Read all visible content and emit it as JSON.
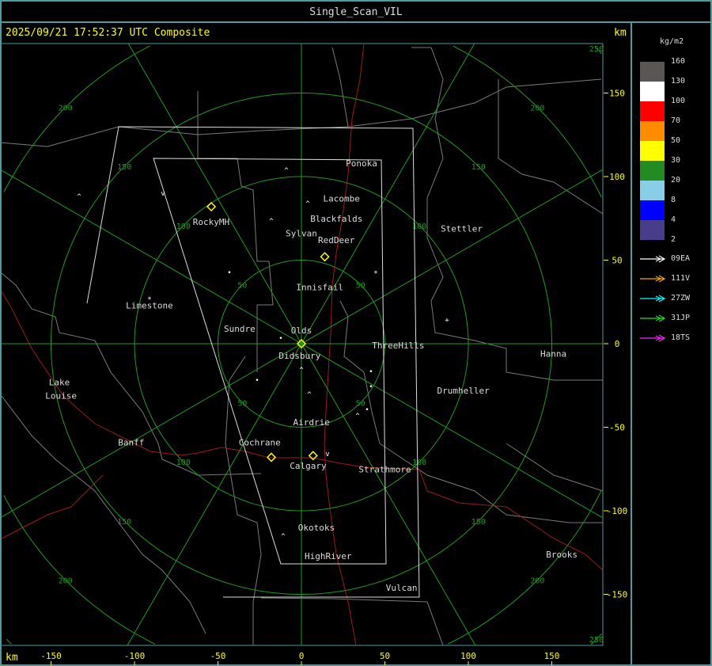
{
  "window": {
    "title": "Single_Scan_VIL"
  },
  "header": {
    "timestamp": "2025/09/21 17:52:37 UTC Composite",
    "km_label_top": "km",
    "km_label_bottom": "km"
  },
  "axes": {
    "x_ticks": [
      -150,
      -100,
      -50,
      0,
      50,
      100,
      150
    ],
    "y_ticks": [
      150,
      100,
      50,
      0,
      -50,
      -100,
      -150
    ],
    "range_rings_km": [
      50,
      100,
      150,
      200,
      250
    ],
    "radial_spacing_deg": 30
  },
  "colors": {
    "axis_text": "#ffff00",
    "rings": "#1f9a1f",
    "borders": "#7a7a7a",
    "highways": "#9b1b1b",
    "domains": "#dddddd",
    "radar_site": "#ffff00",
    "frame": "#4e9a9e"
  },
  "cities": [
    {
      "name": "Ponoka",
      "x": 36,
      "y": 108
    },
    {
      "name": "Lacombe",
      "x": 24,
      "y": 87
    },
    {
      "name": "Blackfalds",
      "x": 21,
      "y": 75
    },
    {
      "name": "Sylvan",
      "x": 0,
      "y": 66
    },
    {
      "name": "RedDeer",
      "x": 20,
      "y": 62
    },
    {
      "name": "Stettler",
      "x": 96,
      "y": 69
    },
    {
      "name": "RockyMH",
      "x": -55,
      "y": 73
    },
    {
      "name": "Innisfail",
      "x": 11,
      "y": 34
    },
    {
      "name": "Limestone",
      "x": -91,
      "y": 23
    },
    {
      "name": "Sundre",
      "x": -37,
      "y": 9
    },
    {
      "name": "Olds",
      "x": 0,
      "y": 8
    },
    {
      "name": "Didsbury",
      "x": -1,
      "y": -7
    },
    {
      "name": "ThreeHills",
      "x": 58,
      "y": -1
    },
    {
      "name": "Hanna",
      "x": 151,
      "y": -6
    },
    {
      "name": "Drumheller",
      "x": 97,
      "y": -28
    },
    {
      "name": "Lake",
      "x": -145,
      "y": -23
    },
    {
      "name": "Louise",
      "x": -144,
      "y": -31
    },
    {
      "name": "Banff",
      "x": -102,
      "y": -59
    },
    {
      "name": "Airdrie",
      "x": 6,
      "y": -47
    },
    {
      "name": "Cochrane",
      "x": -25,
      "y": -59
    },
    {
      "name": "Calgary",
      "x": 4,
      "y": -73
    },
    {
      "name": "Strathmore",
      "x": 50,
      "y": -75
    },
    {
      "name": "Okotoks",
      "x": 9,
      "y": -110
    },
    {
      "name": "HighRiver",
      "x": 16,
      "y": -127
    },
    {
      "name": "Brooks",
      "x": 156,
      "y": -126
    },
    {
      "name": "Vulcan",
      "x": 60,
      "y": -146
    }
  ],
  "radar_sites_km": [
    [
      -54,
      82
    ],
    [
      14,
      52
    ],
    [
      0,
      0
    ],
    [
      -18,
      -68
    ],
    [
      7,
      -67
    ]
  ],
  "legend": {
    "unit": "kg/m2",
    "items": [
      {
        "label": "160",
        "color": "#5a5656"
      },
      {
        "label": "130",
        "color": "#ffffff"
      },
      {
        "label": "100",
        "color": "#ff0000"
      },
      {
        "label": "70",
        "color": "#ff8c00"
      },
      {
        "label": "50",
        "color": "#ffff00"
      },
      {
        "label": "30",
        "color": "#228b22"
      },
      {
        "label": "20",
        "color": "#87cee6"
      },
      {
        "label": "8",
        "color": "#0000ff"
      },
      {
        "label": "4",
        "color": "#483d8b"
      }
    ],
    "bottom_label": "2",
    "storm_tracks": [
      {
        "label": "09EA",
        "color": "#ffffff"
      },
      {
        "label": "111V",
        "color": "#ffa500"
      },
      {
        "label": "27ZW",
        "color": "#00ffff"
      },
      {
        "label": "31JP",
        "color": "#22dd22"
      },
      {
        "label": "18TS",
        "color": "#ff22ff"
      }
    ]
  }
}
